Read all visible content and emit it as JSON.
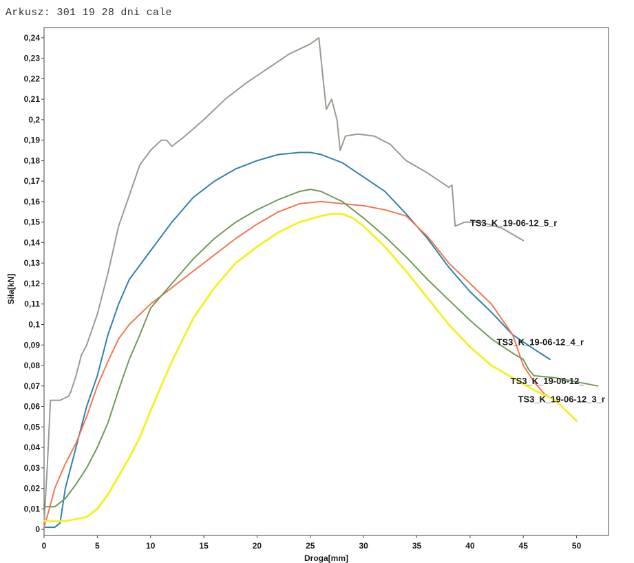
{
  "sheet": {
    "title": "Arkusz: 301 19 28 dni cale"
  },
  "chart_data": {
    "type": "line",
    "xlabel": "Droga[mm]",
    "ylabel": "Siła[kN]",
    "xlim": [
      0,
      53
    ],
    "ylim": [
      -0.003,
      0.245
    ],
    "x_ticks": [
      0,
      5,
      10,
      15,
      20,
      25,
      30,
      35,
      40,
      45,
      50
    ],
    "x_tick_labels": [
      "0",
      "5",
      "10",
      "15",
      "20",
      "25",
      "30",
      "35",
      "40",
      "45",
      "50"
    ],
    "y_ticks": [
      0,
      0.01,
      0.02,
      0.03,
      0.04,
      0.05,
      0.06,
      0.07,
      0.08,
      0.09,
      0.1,
      0.11,
      0.12,
      0.13,
      0.14,
      0.15,
      0.16,
      0.17,
      0.18,
      0.19,
      0.2,
      0.21,
      0.22,
      0.23,
      0.24
    ],
    "y_tick_labels": [
      "0",
      "0,01",
      "0,02",
      "0,03",
      "0,04",
      "0,05",
      "0,06",
      "0,07",
      "0,08",
      "0,09",
      "0,1",
      "0,11",
      "0,12",
      "0,13",
      "0,14",
      "0,15",
      "0,16",
      "0,17",
      "0,18",
      "0,19",
      "0,2",
      "0,21",
      "0,22",
      "0,23",
      "0,24"
    ],
    "grid": false,
    "legend": "none",
    "series": [
      {
        "color": "#9a9a92",
        "points": [
          [
            0,
            0.003
          ],
          [
            0.3,
            0.03
          ],
          [
            0.6,
            0.063
          ],
          [
            1.5,
            0.063
          ],
          [
            2.3,
            0.065
          ],
          [
            2.5,
            0.067
          ],
          [
            3,
            0.075
          ],
          [
            3.5,
            0.085
          ],
          [
            4,
            0.09
          ],
          [
            5,
            0.105
          ],
          [
            6,
            0.125
          ],
          [
            7,
            0.148
          ],
          [
            8,
            0.163
          ],
          [
            9,
            0.178
          ],
          [
            10,
            0.185
          ],
          [
            11,
            0.19
          ],
          [
            11.5,
            0.19
          ],
          [
            12,
            0.187
          ],
          [
            13,
            0.191
          ],
          [
            15,
            0.2
          ],
          [
            17,
            0.21
          ],
          [
            19,
            0.218
          ],
          [
            21,
            0.225
          ],
          [
            23,
            0.232
          ],
          [
            25,
            0.237
          ],
          [
            25.8,
            0.24
          ],
          [
            26,
            0.23
          ],
          [
            26.5,
            0.205
          ],
          [
            27,
            0.21
          ],
          [
            27.5,
            0.2
          ],
          [
            27.8,
            0.185
          ],
          [
            28.3,
            0.192
          ],
          [
            29.5,
            0.193
          ],
          [
            31,
            0.192
          ],
          [
            32.5,
            0.188
          ],
          [
            34,
            0.18
          ],
          [
            36,
            0.174
          ],
          [
            38,
            0.167
          ],
          [
            38.3,
            0.168
          ],
          [
            38.6,
            0.148
          ],
          [
            39.5,
            0.15
          ],
          [
            41,
            0.15
          ],
          [
            43,
            0.147
          ],
          [
            45,
            0.141
          ]
        ]
      },
      {
        "color": "#2f7fae",
        "points": [
          [
            0,
            0.001
          ],
          [
            1,
            0.001
          ],
          [
            1.5,
            0.003
          ],
          [
            2,
            0.02
          ],
          [
            3,
            0.04
          ],
          [
            4,
            0.06
          ],
          [
            5,
            0.075
          ],
          [
            6,
            0.095
          ],
          [
            7,
            0.11
          ],
          [
            8,
            0.122
          ],
          [
            10,
            0.136
          ],
          [
            12,
            0.15
          ],
          [
            14,
            0.162
          ],
          [
            16,
            0.17
          ],
          [
            18,
            0.176
          ],
          [
            20,
            0.18
          ],
          [
            22,
            0.183
          ],
          [
            24,
            0.184
          ],
          [
            25,
            0.184
          ],
          [
            26,
            0.183
          ],
          [
            28,
            0.179
          ],
          [
            30,
            0.172
          ],
          [
            32,
            0.165
          ],
          [
            34,
            0.154
          ],
          [
            36,
            0.142
          ],
          [
            38,
            0.128
          ],
          [
            40,
            0.116
          ],
          [
            42,
            0.106
          ],
          [
            44,
            0.095
          ],
          [
            46,
            0.088
          ],
          [
            47.5,
            0.083
          ]
        ]
      },
      {
        "color": "#f07850",
        "points": [
          [
            0,
            0.001
          ],
          [
            0.5,
            0.01
          ],
          [
            1,
            0.02
          ],
          [
            2,
            0.032
          ],
          [
            3,
            0.042
          ],
          [
            4,
            0.055
          ],
          [
            5,
            0.07
          ],
          [
            6,
            0.082
          ],
          [
            7,
            0.093
          ],
          [
            8,
            0.1
          ],
          [
            10,
            0.11
          ],
          [
            12,
            0.118
          ],
          [
            14,
            0.126
          ],
          [
            16,
            0.134
          ],
          [
            18,
            0.142
          ],
          [
            20,
            0.149
          ],
          [
            22,
            0.155
          ],
          [
            24,
            0.159
          ],
          [
            26,
            0.16
          ],
          [
            28,
            0.159
          ],
          [
            30,
            0.158
          ],
          [
            32,
            0.156
          ],
          [
            34,
            0.153
          ],
          [
            36,
            0.143
          ],
          [
            38,
            0.13
          ],
          [
            40,
            0.12
          ],
          [
            42,
            0.11
          ],
          [
            44,
            0.095
          ],
          [
            45,
            0.08
          ],
          [
            46,
            0.072
          ],
          [
            47,
            0.066
          ],
          [
            48,
            0.063
          ]
        ]
      },
      {
        "color": "#6f9a58",
        "points": [
          [
            0,
            0.011
          ],
          [
            1,
            0.011
          ],
          [
            2,
            0.015
          ],
          [
            3,
            0.022
          ],
          [
            4,
            0.03
          ],
          [
            5,
            0.04
          ],
          [
            6,
            0.052
          ],
          [
            7,
            0.068
          ],
          [
            8,
            0.083
          ],
          [
            9,
            0.095
          ],
          [
            10,
            0.108
          ],
          [
            12,
            0.12
          ],
          [
            14,
            0.132
          ],
          [
            16,
            0.142
          ],
          [
            18,
            0.15
          ],
          [
            20,
            0.156
          ],
          [
            22,
            0.161
          ],
          [
            24,
            0.165
          ],
          [
            25,
            0.166
          ],
          [
            26,
            0.165
          ],
          [
            28,
            0.16
          ],
          [
            30,
            0.152
          ],
          [
            32,
            0.143
          ],
          [
            34,
            0.133
          ],
          [
            36,
            0.122
          ],
          [
            38,
            0.112
          ],
          [
            40,
            0.102
          ],
          [
            42,
            0.093
          ],
          [
            44,
            0.086
          ],
          [
            45,
            0.083
          ],
          [
            45.5,
            0.078
          ],
          [
            46,
            0.075
          ],
          [
            48,
            0.074
          ],
          [
            50,
            0.072
          ],
          [
            52,
            0.07
          ]
        ]
      },
      {
        "color": "#f2f22a",
        "points": [
          [
            0,
            0.004
          ],
          [
            2,
            0.004
          ],
          [
            3,
            0.005
          ],
          [
            4,
            0.006
          ],
          [
            5,
            0.01
          ],
          [
            6,
            0.017
          ],
          [
            7,
            0.026
          ],
          [
            8,
            0.035
          ],
          [
            9,
            0.045
          ],
          [
            10,
            0.058
          ],
          [
            12,
            0.082
          ],
          [
            14,
            0.103
          ],
          [
            16,
            0.118
          ],
          [
            18,
            0.13
          ],
          [
            20,
            0.138
          ],
          [
            22,
            0.145
          ],
          [
            24,
            0.15
          ],
          [
            26,
            0.153
          ],
          [
            27,
            0.154
          ],
          [
            28,
            0.154
          ],
          [
            29,
            0.152
          ],
          [
            30,
            0.148
          ],
          [
            32,
            0.138
          ],
          [
            34,
            0.126
          ],
          [
            36,
            0.113
          ],
          [
            38,
            0.1
          ],
          [
            40,
            0.089
          ],
          [
            42,
            0.08
          ],
          [
            44,
            0.074
          ],
          [
            46,
            0.068
          ],
          [
            48,
            0.063
          ],
          [
            50,
            0.053
          ]
        ]
      }
    ],
    "annotations": [
      {
        "text": "TS3_K_19-06-12_5_r",
        "x": 40,
        "y": 0.148,
        "color": "#1a1a1a"
      },
      {
        "text": "TS3_K_19-06-12_4_r",
        "x": 42.5,
        "y": 0.09,
        "color": "#1a1a1a"
      },
      {
        "text": "TS3_K_19-06-12_",
        "x": 43.8,
        "y": 0.071,
        "color": "#1a1a1a"
      },
      {
        "text": "TS3_K_19-06-12_3_r",
        "x": 44.5,
        "y": 0.062,
        "color": "#1a1a1a"
      }
    ]
  }
}
